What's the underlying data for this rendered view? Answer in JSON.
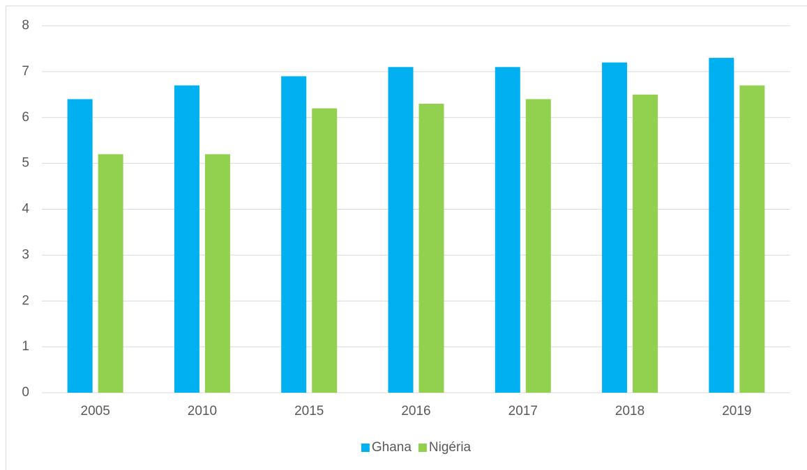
{
  "chart_data": {
    "type": "bar",
    "categories": [
      "2005",
      "2010",
      "2015",
      "2016",
      "2017",
      "2018",
      "2019"
    ],
    "series": [
      {
        "name": "Ghana",
        "color": "#00b0f0",
        "values": [
          6.4,
          6.7,
          6.9,
          7.1,
          7.1,
          7.2,
          7.3
        ]
      },
      {
        "name": "Nigéria",
        "color": "#92d050",
        "values": [
          5.2,
          5.2,
          6.2,
          6.3,
          6.4,
          6.5,
          6.7
        ]
      }
    ],
    "ylim": [
      0,
      8
    ],
    "yticks": [
      0,
      1,
      2,
      3,
      4,
      5,
      6,
      7,
      8
    ],
    "grid": true,
    "legend": "bottom"
  }
}
